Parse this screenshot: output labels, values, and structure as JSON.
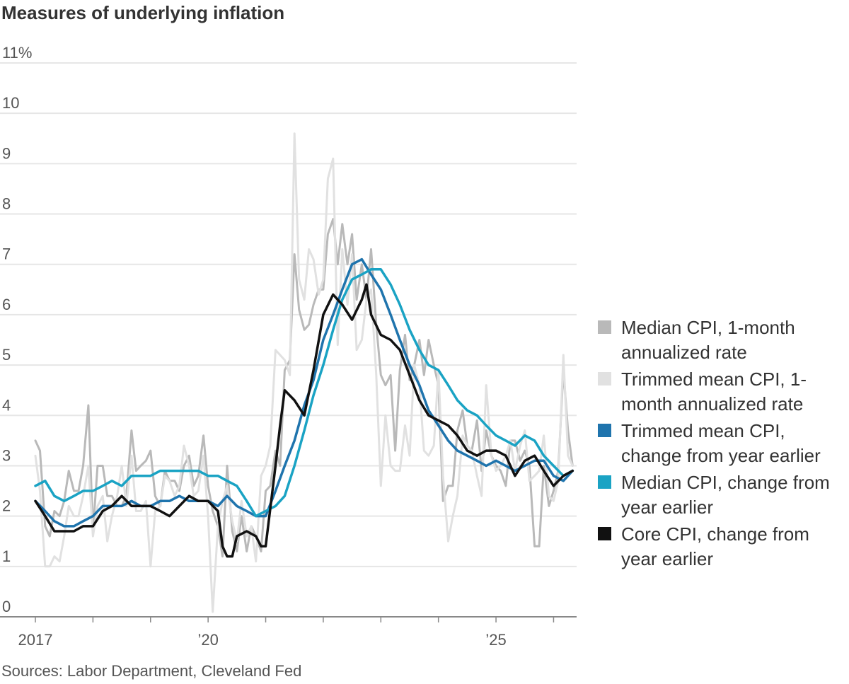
{
  "title": "Measures of underlying inflation",
  "source": "Sources: Labor Department, Cleveland Fed",
  "colors": {
    "median_1m": "#b9b9b9",
    "trimmed_1m": "#e1e1e1",
    "trimmed_yoy": "#1f74ad",
    "median_yoy": "#1aa3c4",
    "core_yoy": "#111111"
  },
  "chart_data": {
    "type": "line",
    "title": "Measures of underlying inflation",
    "xlabel": "",
    "ylabel": "",
    "ylim": [
      0,
      11
    ],
    "xlim": [
      2017.0,
      2026.4
    ],
    "y_tick_labels": [
      "0",
      "1",
      "2",
      "3",
      "4",
      "5",
      "6",
      "7",
      "8",
      "9",
      "10",
      "11%"
    ],
    "x_tick_labels": [
      {
        "x": 2017,
        "label": "2017"
      },
      {
        "x": 2020,
        "label": "’20"
      },
      {
        "x": 2025,
        "label": "’25"
      }
    ],
    "grid": true,
    "legend_position": "right",
    "series": [
      {
        "name": "Median CPI, 1-month annualized rate",
        "key": "median_1m",
        "x": [
          2017.0,
          2017.08,
          2017.17,
          2017.25,
          2017.33,
          2017.42,
          2017.5,
          2017.58,
          2017.67,
          2017.75,
          2017.83,
          2017.92,
          2018.0,
          2018.08,
          2018.17,
          2018.25,
          2018.33,
          2018.42,
          2018.5,
          2018.58,
          2018.67,
          2018.75,
          2018.83,
          2018.92,
          2019.0,
          2019.08,
          2019.17,
          2019.25,
          2019.33,
          2019.42,
          2019.5,
          2019.58,
          2019.67,
          2019.75,
          2019.83,
          2019.92,
          2020.0,
          2020.08,
          2020.17,
          2020.25,
          2020.33,
          2020.42,
          2020.5,
          2020.58,
          2020.67,
          2020.75,
          2020.83,
          2020.92,
          2021.0,
          2021.08,
          2021.17,
          2021.25,
          2021.33,
          2021.42,
          2021.5,
          2021.58,
          2021.67,
          2021.75,
          2021.83,
          2021.92,
          2022.0,
          2022.08,
          2022.17,
          2022.25,
          2022.33,
          2022.42,
          2022.5,
          2022.58,
          2022.67,
          2022.75,
          2022.83,
          2022.92,
          2023.0,
          2023.08,
          2023.17,
          2023.25,
          2023.33,
          2023.42,
          2023.5,
          2023.58,
          2023.67,
          2023.75,
          2023.83,
          2023.92,
          2024.0,
          2024.08,
          2024.17,
          2024.25,
          2024.33,
          2024.42,
          2024.5,
          2024.58,
          2024.67,
          2024.75,
          2024.83,
          2024.92,
          2025.0,
          2025.08,
          2025.17,
          2025.25,
          2025.33,
          2025.42,
          2025.5,
          2025.58,
          2025.67,
          2025.75,
          2025.83,
          2025.92,
          2026.0,
          2026.08,
          2026.17,
          2026.25,
          2026.33
        ],
        "values": [
          3.5,
          3.3,
          1.8,
          1.6,
          2.1,
          2.0,
          2.3,
          2.9,
          2.5,
          2.5,
          3.0,
          4.2,
          1.7,
          3.0,
          3.0,
          2.4,
          2.4,
          2.2,
          2.2,
          2.4,
          3.7,
          2.9,
          3.0,
          3.1,
          3.3,
          2.4,
          2.2,
          2.9,
          2.7,
          2.7,
          2.5,
          3.0,
          3.2,
          2.6,
          2.8,
          3.6,
          2.6,
          2.1,
          1.8,
          1.2,
          3.0,
          1.7,
          1.3,
          2.0,
          1.3,
          1.8,
          1.6,
          1.3,
          2.5,
          2.6,
          3.3,
          3.0,
          4.9,
          5.1,
          7.2,
          6.1,
          5.7,
          5.8,
          6.2,
          6.5,
          6.5,
          7.6,
          7.9,
          7.0,
          7.8,
          7.0,
          7.6,
          6.3,
          7.0,
          6.3,
          7.3,
          5.8,
          4.8,
          4.6,
          4.8,
          3.3,
          4.9,
          5.6,
          4.7,
          5.0,
          5.5,
          4.8,
          5.5,
          5.0,
          4.6,
          2.3,
          2.6,
          2.6,
          3.7,
          4.1,
          3.4,
          3.3,
          3.9,
          2.9,
          3.7,
          3.2,
          3.0,
          2.9,
          2.6,
          3.5,
          3.5,
          3.1,
          3.3,
          3.0,
          1.4,
          1.4,
          3.0,
          2.2,
          2.5,
          2.9,
          4.9,
          3.7,
          3.0
        ],
        "color": "#b9b9b9"
      },
      {
        "name": "Trimmed mean CPI, 1-month annualized rate",
        "key": "trimmed_1m",
        "x": [
          2017.0,
          2017.08,
          2017.17,
          2017.25,
          2017.33,
          2017.42,
          2017.5,
          2017.58,
          2017.67,
          2017.75,
          2017.83,
          2017.92,
          2018.0,
          2018.08,
          2018.17,
          2018.25,
          2018.33,
          2018.42,
          2018.5,
          2018.58,
          2018.67,
          2018.75,
          2018.83,
          2018.92,
          2019.0,
          2019.08,
          2019.17,
          2019.25,
          2019.33,
          2019.42,
          2019.5,
          2019.58,
          2019.67,
          2019.75,
          2019.83,
          2019.92,
          2020.0,
          2020.08,
          2020.17,
          2020.25,
          2020.33,
          2020.42,
          2020.5,
          2020.58,
          2020.67,
          2020.75,
          2020.83,
          2020.92,
          2021.0,
          2021.08,
          2021.17,
          2021.25,
          2021.33,
          2021.42,
          2021.5,
          2021.58,
          2021.67,
          2021.75,
          2021.83,
          2021.92,
          2022.0,
          2022.08,
          2022.17,
          2022.25,
          2022.33,
          2022.42,
          2022.5,
          2022.58,
          2022.67,
          2022.75,
          2022.83,
          2022.92,
          2023.0,
          2023.08,
          2023.17,
          2023.25,
          2023.33,
          2023.42,
          2023.5,
          2023.58,
          2023.67,
          2023.75,
          2023.83,
          2023.92,
          2024.0,
          2024.08,
          2024.17,
          2024.25,
          2024.33,
          2024.42,
          2024.5,
          2024.58,
          2024.67,
          2024.75,
          2024.83,
          2024.92,
          2025.0,
          2025.08,
          2025.17,
          2025.25,
          2025.33,
          2025.42,
          2025.5,
          2025.58,
          2025.67,
          2025.75,
          2025.83,
          2025.92,
          2026.0,
          2026.08,
          2026.17,
          2026.25,
          2026.33
        ],
        "values": [
          3.2,
          2.5,
          1.0,
          1.0,
          1.2,
          1.1,
          1.6,
          2.2,
          2.0,
          2.0,
          2.4,
          3.0,
          1.6,
          2.2,
          2.4,
          1.5,
          2.0,
          2.4,
          3.0,
          2.2,
          3.2,
          2.1,
          2.1,
          2.3,
          1.0,
          2.1,
          2.2,
          2.8,
          2.7,
          2.4,
          2.6,
          3.4,
          3.0,
          2.4,
          2.5,
          3.2,
          2.0,
          0.1,
          1.8,
          2.3,
          2.6,
          1.9,
          1.5,
          2.3,
          1.6,
          1.8,
          1.1,
          2.8,
          3.0,
          3.4,
          5.3,
          5.2,
          5.1,
          4.8,
          9.6,
          6.7,
          6.3,
          7.3,
          7.1,
          6.4,
          6.7,
          8.7,
          9.1,
          5.4,
          7.3,
          6.2,
          7.2,
          5.3,
          5.5,
          6.3,
          6.5,
          4.8,
          2.6,
          4.0,
          3.0,
          2.9,
          2.9,
          3.8,
          3.2,
          5.0,
          4.6,
          3.3,
          3.2,
          3.4,
          4.9,
          2.8,
          1.5,
          2.0,
          2.4,
          3.6,
          3.4,
          3.3,
          2.8,
          2.4,
          4.6,
          3.2,
          2.9,
          3.0,
          3.2,
          3.5,
          2.9,
          3.4,
          3.7,
          2.7,
          2.8,
          2.9,
          3.6,
          2.4,
          2.3,
          2.7,
          5.2,
          3.2,
          3.0
        ],
        "color": "#e1e1e1"
      },
      {
        "name": "Trimmed mean CPI, change from year earlier",
        "key": "trimmed_yoy",
        "x": [
          2017.0,
          2017.17,
          2017.33,
          2017.5,
          2017.67,
          2017.83,
          2018.0,
          2018.17,
          2018.33,
          2018.5,
          2018.67,
          2018.83,
          2019.0,
          2019.17,
          2019.33,
          2019.5,
          2019.67,
          2019.83,
          2020.0,
          2020.17,
          2020.33,
          2020.5,
          2020.67,
          2020.83,
          2021.0,
          2021.17,
          2021.33,
          2021.5,
          2021.67,
          2021.83,
          2022.0,
          2022.17,
          2022.33,
          2022.5,
          2022.67,
          2022.83,
          2023.0,
          2023.17,
          2023.33,
          2023.5,
          2023.67,
          2023.83,
          2024.0,
          2024.17,
          2024.33,
          2024.5,
          2024.67,
          2024.83,
          2025.0,
          2025.17,
          2025.33,
          2025.5,
          2025.67,
          2025.83,
          2026.0,
          2026.17,
          2026.33
        ],
        "values": [
          2.3,
          2.1,
          1.9,
          1.8,
          1.8,
          1.9,
          2.0,
          2.2,
          2.2,
          2.2,
          2.3,
          2.2,
          2.2,
          2.3,
          2.3,
          2.4,
          2.3,
          2.3,
          2.3,
          2.2,
          2.4,
          2.2,
          2.1,
          2.0,
          2.0,
          2.5,
          3.0,
          3.5,
          4.2,
          4.7,
          5.5,
          6.0,
          6.5,
          7.0,
          7.1,
          6.8,
          6.5,
          6.0,
          5.5,
          5.0,
          4.6,
          4.1,
          3.8,
          3.5,
          3.3,
          3.2,
          3.1,
          3.0,
          3.1,
          3.0,
          2.9,
          3.0,
          3.1,
          3.1,
          2.8,
          2.7,
          2.9
        ],
        "color": "#1f74ad"
      },
      {
        "name": "Median CPI, change from year earlier",
        "key": "median_yoy",
        "x": [
          2017.0,
          2017.17,
          2017.33,
          2017.5,
          2017.67,
          2017.83,
          2018.0,
          2018.17,
          2018.33,
          2018.5,
          2018.67,
          2018.83,
          2019.0,
          2019.17,
          2019.33,
          2019.5,
          2019.67,
          2019.83,
          2020.0,
          2020.17,
          2020.33,
          2020.5,
          2020.67,
          2020.83,
          2021.0,
          2021.17,
          2021.33,
          2021.5,
          2021.67,
          2021.83,
          2022.0,
          2022.17,
          2022.33,
          2022.5,
          2022.67,
          2022.83,
          2023.0,
          2023.17,
          2023.33,
          2023.5,
          2023.67,
          2023.83,
          2024.0,
          2024.17,
          2024.33,
          2024.5,
          2024.67,
          2024.83,
          2025.0,
          2025.17,
          2025.33,
          2025.5,
          2025.67,
          2025.83,
          2026.0,
          2026.17,
          2026.33
        ],
        "values": [
          2.6,
          2.7,
          2.4,
          2.3,
          2.4,
          2.5,
          2.5,
          2.6,
          2.7,
          2.6,
          2.8,
          2.8,
          2.8,
          2.9,
          2.9,
          2.9,
          2.9,
          2.9,
          2.8,
          2.8,
          2.7,
          2.6,
          2.3,
          2.0,
          2.1,
          2.2,
          2.4,
          3.0,
          3.7,
          4.4,
          5.0,
          5.7,
          6.3,
          6.7,
          6.8,
          6.9,
          6.9,
          6.6,
          6.2,
          5.7,
          5.3,
          5.0,
          4.9,
          4.6,
          4.3,
          4.1,
          4.0,
          3.8,
          3.6,
          3.5,
          3.4,
          3.6,
          3.5,
          3.2,
          3.0,
          2.8,
          2.9
        ],
        "color": "#1aa3c4"
      },
      {
        "name": "Core CPI, change from year earlier",
        "key": "core_yoy",
        "x": [
          2017.0,
          2017.17,
          2017.33,
          2017.5,
          2017.67,
          2017.83,
          2018.0,
          2018.17,
          2018.33,
          2018.5,
          2018.67,
          2018.83,
          2019.0,
          2019.17,
          2019.33,
          2019.5,
          2019.67,
          2019.83,
          2020.0,
          2020.17,
          2020.25,
          2020.33,
          2020.42,
          2020.5,
          2020.67,
          2020.83,
          2020.92,
          2021.0,
          2021.17,
          2021.25,
          2021.33,
          2021.5,
          2021.67,
          2021.83,
          2022.0,
          2022.17,
          2022.33,
          2022.5,
          2022.67,
          2022.75,
          2022.83,
          2023.0,
          2023.17,
          2023.33,
          2023.5,
          2023.67,
          2023.83,
          2024.0,
          2024.17,
          2024.33,
          2024.5,
          2024.67,
          2024.83,
          2025.0,
          2025.17,
          2025.33,
          2025.5,
          2025.67,
          2025.83,
          2026.0,
          2026.17,
          2026.33
        ],
        "values": [
          2.3,
          2.0,
          1.7,
          1.7,
          1.7,
          1.8,
          1.8,
          2.1,
          2.2,
          2.4,
          2.2,
          2.2,
          2.2,
          2.1,
          2.0,
          2.2,
          2.4,
          2.3,
          2.3,
          2.1,
          1.4,
          1.2,
          1.2,
          1.6,
          1.7,
          1.6,
          1.4,
          1.4,
          3.0,
          3.8,
          4.5,
          4.3,
          4.0,
          4.9,
          6.0,
          6.4,
          6.2,
          5.9,
          6.3,
          6.6,
          6.0,
          5.6,
          5.5,
          5.3,
          4.8,
          4.3,
          4.0,
          3.9,
          3.8,
          3.6,
          3.3,
          3.2,
          3.3,
          3.3,
          3.2,
          2.8,
          3.1,
          3.2,
          2.9,
          2.6,
          2.8,
          2.9
        ],
        "color": "#111111"
      }
    ]
  }
}
